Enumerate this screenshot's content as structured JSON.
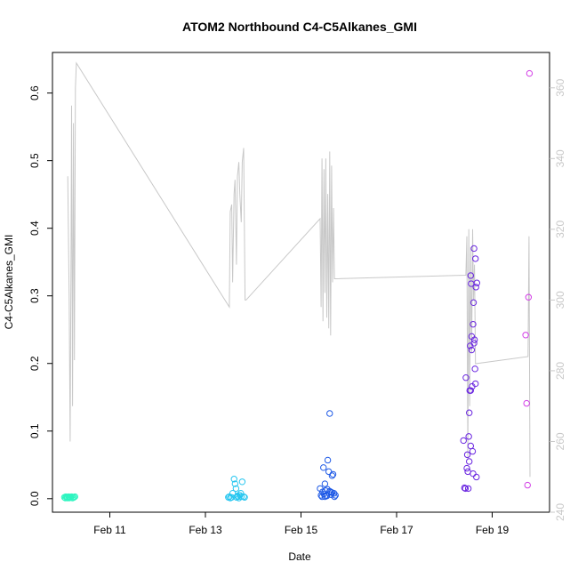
{
  "chart_data": {
    "type": "scatter",
    "title": "ATOM2 Northbound C4-C5Alkanes_GMI",
    "xlabel": "Date",
    "ylabel": "C4-C5Alkanes_GMI",
    "xlim": [
      9.8,
      20.2
    ],
    "ylim": [
      -0.02,
      0.66
    ],
    "yticks": [
      0.0,
      0.1,
      0.2,
      0.3,
      0.4,
      0.5,
      0.6
    ],
    "xticks": [
      {
        "value": 11,
        "label": "Feb 11"
      },
      {
        "value": 13,
        "label": "Feb 13"
      },
      {
        "value": 15,
        "label": "Feb 15"
      },
      {
        "value": 17,
        "label": "Feb 17"
      },
      {
        "value": 19,
        "label": "Feb 19"
      }
    ],
    "y2lim": [
      240,
      370
    ],
    "y2ticks": [
      240,
      260,
      280,
      300,
      320,
      340,
      360
    ],
    "line_color": "#c8c8c8",
    "secondary_line": [
      [
        10.12,
        335
      ],
      [
        10.15,
        300
      ],
      [
        10.17,
        260
      ],
      [
        10.19,
        320
      ],
      [
        10.2,
        355
      ],
      [
        10.22,
        270
      ],
      [
        10.24,
        350
      ],
      [
        10.26,
        283
      ],
      [
        10.28,
        360
      ],
      [
        10.3,
        367
      ],
      [
        13.5,
        298
      ],
      [
        13.52,
        325
      ],
      [
        13.55,
        327
      ],
      [
        13.57,
        305
      ],
      [
        13.6,
        330
      ],
      [
        13.62,
        334
      ],
      [
        13.65,
        310
      ],
      [
        13.67,
        335
      ],
      [
        13.7,
        339
      ],
      [
        13.72,
        330
      ],
      [
        13.75,
        322
      ],
      [
        13.77,
        339
      ],
      [
        13.8,
        343
      ],
      [
        13.83,
        300
      ],
      [
        13.85,
        300
      ],
      [
        15.4,
        323
      ],
      [
        15.42,
        298
      ],
      [
        15.44,
        340
      ],
      [
        15.46,
        294
      ],
      [
        15.48,
        337
      ],
      [
        15.5,
        302
      ],
      [
        15.52,
        340
      ],
      [
        15.54,
        295
      ],
      [
        15.56,
        330
      ],
      [
        15.58,
        292
      ],
      [
        15.6,
        342
      ],
      [
        15.62,
        290
      ],
      [
        15.64,
        338
      ],
      [
        15.66,
        305
      ],
      [
        15.68,
        326
      ],
      [
        15.7,
        306
      ],
      [
        15.72,
        306
      ],
      [
        18.45,
        307
      ],
      [
        18.47,
        318
      ],
      [
        18.49,
        255
      ],
      [
        18.51,
        320
      ],
      [
        18.53,
        270
      ],
      [
        18.55,
        315
      ],
      [
        18.57,
        285
      ],
      [
        18.59,
        320
      ],
      [
        18.61,
        300
      ],
      [
        18.63,
        310
      ],
      [
        18.65,
        282
      ],
      [
        19.75,
        284
      ],
      [
        19.77,
        318
      ],
      [
        19.79,
        250
      ]
    ],
    "series": [
      {
        "color": "#2ef5c0",
        "points": [
          [
            10.05,
            0.002
          ],
          [
            10.07,
            0.001
          ],
          [
            10.08,
            0.003
          ],
          [
            10.1,
            0.002
          ],
          [
            10.11,
            0.001
          ],
          [
            10.12,
            0.002
          ],
          [
            10.14,
            0.003
          ],
          [
            10.15,
            0.001
          ],
          [
            10.17,
            0.002
          ],
          [
            10.18,
            0.002
          ],
          [
            10.2,
            0.003
          ],
          [
            10.22,
            0.001
          ],
          [
            10.24,
            0.002
          ],
          [
            10.25,
            0.002
          ],
          [
            10.27,
            0.003
          ]
        ]
      },
      {
        "color": "#25c6f0",
        "points": [
          [
            13.48,
            0.002
          ],
          [
            13.5,
            0.003
          ],
          [
            13.52,
            0.001
          ],
          [
            13.55,
            0.002
          ],
          [
            13.57,
            0.008
          ],
          [
            13.6,
            0.029
          ],
          [
            13.62,
            0.022
          ],
          [
            13.64,
            0.015
          ],
          [
            13.65,
            0.002
          ],
          [
            13.67,
            0.004
          ],
          [
            13.68,
            0.003
          ],
          [
            13.7,
            0.001
          ],
          [
            13.72,
            0.005
          ],
          [
            13.74,
            0.008
          ],
          [
            13.75,
            0.003
          ],
          [
            13.77,
            0.025
          ],
          [
            13.8,
            0.003
          ],
          [
            13.82,
            0.002
          ]
        ]
      },
      {
        "color": "#1f5ae6",
        "points": [
          [
            15.4,
            0.015
          ],
          [
            15.42,
            0.005
          ],
          [
            15.44,
            0.003
          ],
          [
            15.45,
            0.01
          ],
          [
            15.47,
            0.046
          ],
          [
            15.48,
            0.007
          ],
          [
            15.5,
            0.022
          ],
          [
            15.51,
            0.012
          ],
          [
            15.53,
            0.005
          ],
          [
            15.54,
            0.004
          ],
          [
            15.56,
            0.057
          ],
          [
            15.58,
            0.04
          ],
          [
            15.6,
            0.126
          ],
          [
            15.62,
            0.01
          ],
          [
            15.63,
            0.006
          ],
          [
            15.65,
            0.034
          ],
          [
            15.67,
            0.036
          ],
          [
            15.69,
            0.008
          ],
          [
            15.7,
            0.003
          ],
          [
            15.72,
            0.005
          ],
          [
            15.5,
            0.003
          ],
          [
            15.55,
            0.014
          ],
          [
            15.6,
            0.011
          ],
          [
            15.65,
            0.009
          ]
        ]
      },
      {
        "color": "#6a26e0",
        "points": [
          [
            18.4,
            0.086
          ],
          [
            18.42,
            0.016
          ],
          [
            18.44,
            0.015
          ],
          [
            18.45,
            0.179
          ],
          [
            18.47,
            0.045
          ],
          [
            18.48,
            0.065
          ],
          [
            18.49,
            0.04
          ],
          [
            18.5,
            0.015
          ],
          [
            18.51,
            0.092
          ],
          [
            18.52,
            0.127
          ],
          [
            18.53,
            0.16
          ],
          [
            18.54,
            0.226
          ],
          [
            18.55,
            0.33
          ],
          [
            18.56,
            0.318
          ],
          [
            18.57,
            0.24
          ],
          [
            18.58,
            0.166
          ],
          [
            18.59,
            0.07
          ],
          [
            18.6,
            0.037
          ],
          [
            18.61,
            0.29
          ],
          [
            18.62,
            0.37
          ],
          [
            18.63,
            0.235
          ],
          [
            18.64,
            0.192
          ],
          [
            18.65,
            0.355
          ],
          [
            18.66,
            0.313
          ],
          [
            18.67,
            0.032
          ],
          [
            18.68,
            0.319
          ],
          [
            18.55,
            0.16
          ],
          [
            18.57,
            0.22
          ],
          [
            18.6,
            0.258
          ],
          [
            18.62,
            0.23
          ],
          [
            18.55,
            0.078
          ],
          [
            18.52,
            0.055
          ],
          [
            18.65,
            0.17
          ]
        ]
      },
      {
        "color": "#d23ce6",
        "points": [
          [
            19.7,
            0.242
          ],
          [
            19.72,
            0.141
          ],
          [
            19.74,
            0.02
          ],
          [
            19.76,
            0.298
          ],
          [
            19.78,
            0.629
          ]
        ]
      }
    ]
  }
}
